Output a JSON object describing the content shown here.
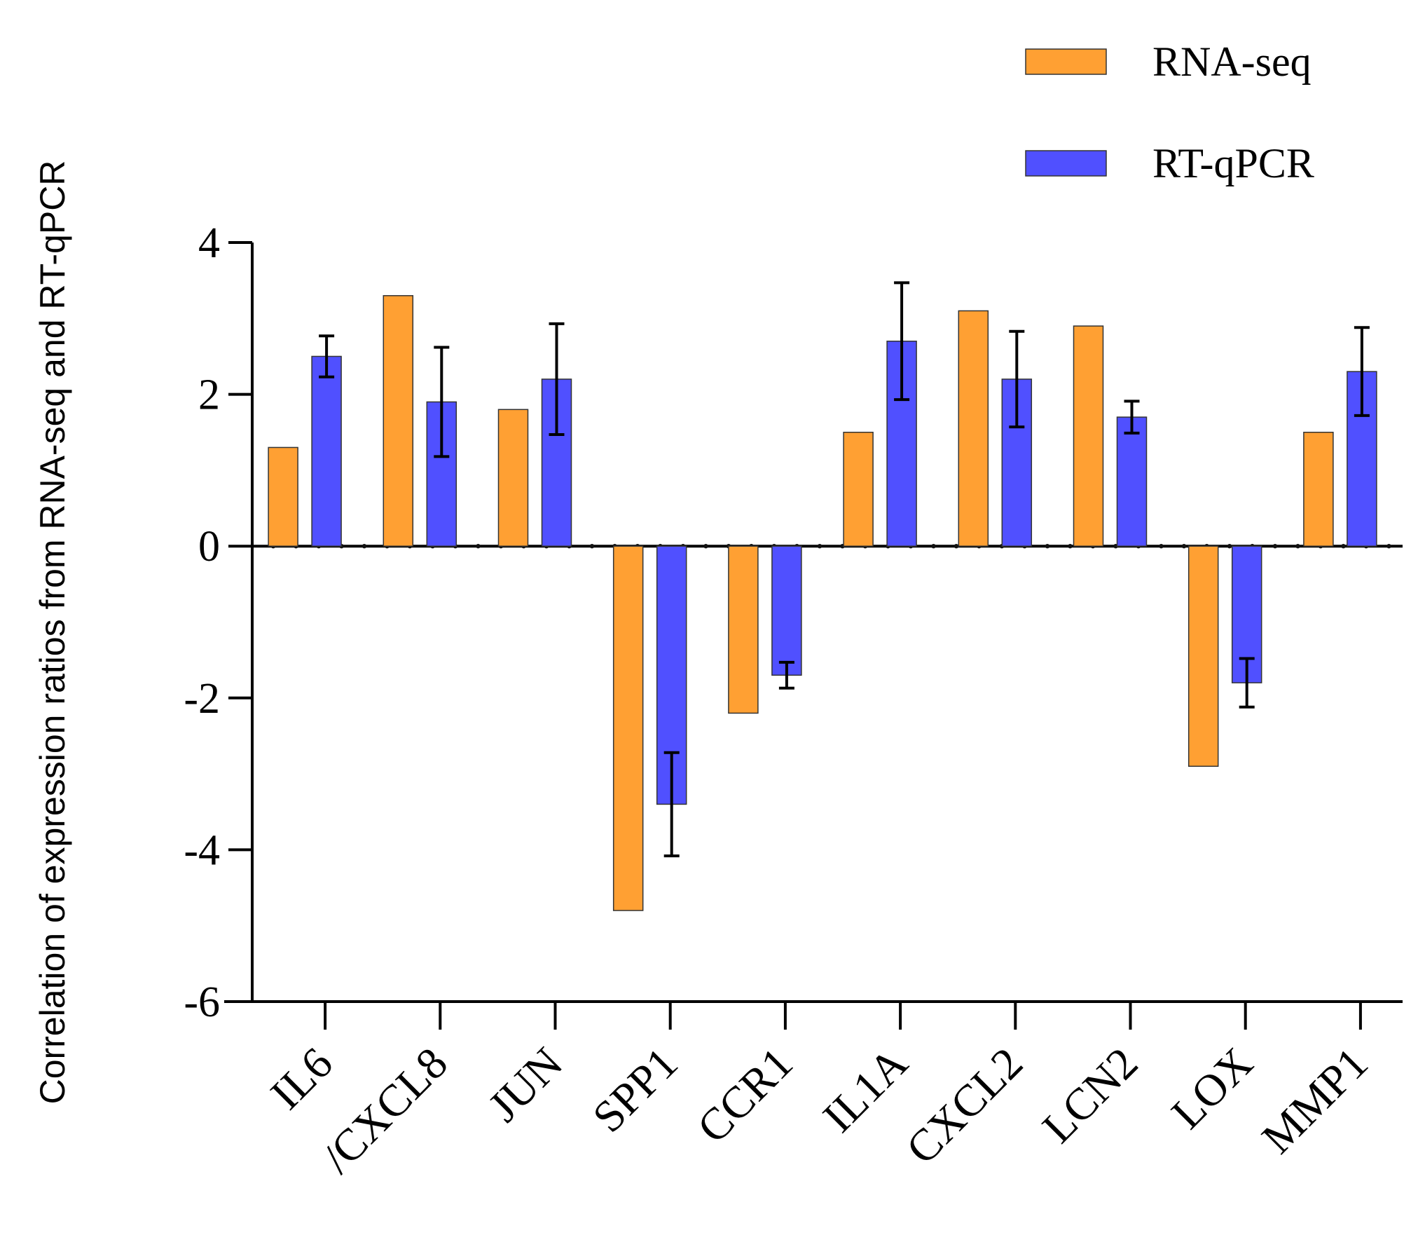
{
  "chart_data": {
    "type": "bar",
    "title": "",
    "xlabel": "",
    "ylabel": "Correlation of expression ratios from RNA-seq and RT-qPCR",
    "ylim": [
      -6,
      4
    ],
    "yticks": [
      "4",
      "2",
      "0",
      "-2",
      "-4",
      "-6"
    ],
    "ytick_values": [
      4,
      2,
      0,
      -2,
      -4,
      -6
    ],
    "categories": [
      "IL6",
      "/CXCL8",
      "JUN",
      "SPP1",
      "CCR1",
      "IL1A",
      "CXCL2",
      "LCN2",
      "LOX",
      "MMP1"
    ],
    "series": [
      {
        "name": "RNA-seq",
        "color": "#FFA033",
        "values": [
          1.3,
          3.3,
          1.8,
          -4.8,
          -2.2,
          1.5,
          3.1,
          2.9,
          -2.9,
          1.5
        ]
      },
      {
        "name": "RT-qPCR",
        "color": "#5050FF",
        "values": [
          2.5,
          1.9,
          2.2,
          -3.4,
          -1.7,
          2.7,
          2.2,
          1.7,
          -1.8,
          2.3
        ],
        "error": [
          0.27,
          0.72,
          0.73,
          0.68,
          0.17,
          0.77,
          0.63,
          0.21,
          0.32,
          0.58
        ]
      }
    ],
    "legend": {
      "position": "top-right"
    },
    "grid": false
  }
}
